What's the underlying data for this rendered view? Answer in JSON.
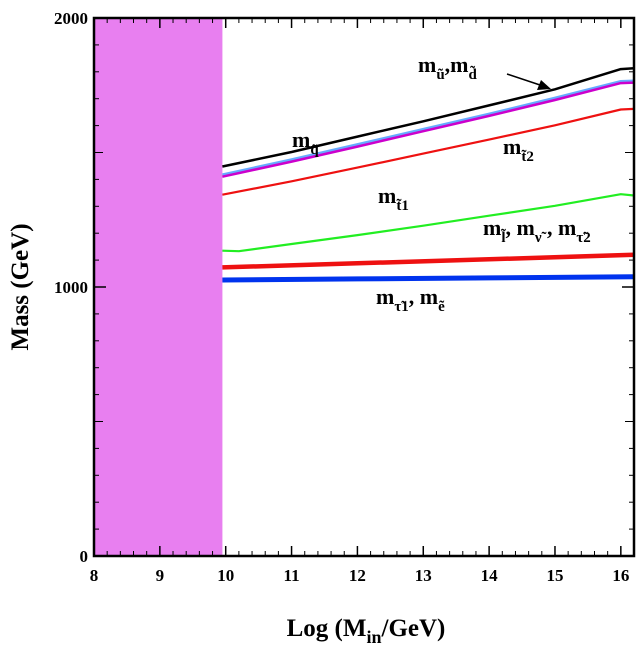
{
  "chart_data": {
    "type": "line",
    "xlabel": "Log (M",
    "xlabel_sub": "in",
    "xlabel_tail": "/GeV)",
    "ylabel": "Mass (GeV)",
    "xlim": [
      8,
      16.2
    ],
    "ylim": [
      0,
      2000
    ],
    "xticks": [
      8,
      9,
      10,
      11,
      12,
      13,
      14,
      15,
      16
    ],
    "yticks": [
      0,
      1000,
      2000
    ],
    "excluded_region": {
      "x_from": 8,
      "x_to": 9.95,
      "color": "#e87ff0"
    },
    "series": [
      {
        "name": "m_q~",
        "color": "#000000",
        "width": 2.5,
        "x": [
          9.95,
          11,
          12,
          13,
          14,
          15,
          16,
          16.2
        ],
        "y": [
          1448,
          1502,
          1559,
          1616,
          1675,
          1735,
          1810,
          1813
        ]
      },
      {
        "name": "m_u~, m_d~ (a)",
        "color": "#66aaff",
        "width": 2.5,
        "x": [
          9.95,
          11,
          12,
          13,
          14,
          15,
          16,
          16.2
        ],
        "y": [
          1418,
          1474,
          1530,
          1587,
          1644,
          1703,
          1765,
          1767
        ]
      },
      {
        "name": "m_u~, m_d~ (b)",
        "color": "#cc00cc",
        "width": 2.5,
        "x": [
          9.95,
          11,
          12,
          13,
          14,
          15,
          16,
          16.2
        ],
        "y": [
          1410,
          1466,
          1522,
          1579,
          1636,
          1695,
          1758,
          1760
        ]
      },
      {
        "name": "m_t~2",
        "color": "#ee1111",
        "width": 2.2,
        "x": [
          9.95,
          11,
          12,
          13,
          14,
          15,
          16,
          16.2
        ],
        "y": [
          1343,
          1393,
          1444,
          1496,
          1548,
          1601,
          1660,
          1662
        ]
      },
      {
        "name": "m_t~1",
        "color": "#22ee22",
        "width": 2.2,
        "x": [
          9.95,
          10.2,
          11,
          12,
          13,
          14,
          15,
          16,
          16.2
        ],
        "y": [
          1135,
          1133,
          1160,
          1193,
          1228,
          1265,
          1302,
          1345,
          1340
        ]
      },
      {
        "name": "m_l~, m_nu~, m_tau~2",
        "color": "#ee1111",
        "width": 4.5,
        "x": [
          9.95,
          12,
          14,
          16.2
        ],
        "y": [
          1073,
          1088,
          1103,
          1120
        ]
      },
      {
        "name": "m_tau~1, m_e~",
        "color": "#0033ee",
        "width": 5,
        "x": [
          9.95,
          12,
          14,
          16.2
        ],
        "y": [
          1026,
          1030,
          1034,
          1038
        ]
      }
    ],
    "labels": [
      {
        "id": "q",
        "main": "m",
        "sub": "q̃",
        "extra": ""
      },
      {
        "id": "ud",
        "main": "m",
        "sub": "ũ",
        "mid": ",m",
        "sub2": "d̃"
      },
      {
        "id": "t2",
        "main": "m",
        "sub": "t̃",
        "sub_num": "2"
      },
      {
        "id": "t1",
        "main": "m",
        "sub": "t̃",
        "sub_num": "1"
      },
      {
        "id": "lnt",
        "main": "m",
        "sub": "l̃",
        "mid": ", m",
        "sub2": "ν̃",
        "mid2": " , m",
        "sub3": "τ̃",
        "sub3_num": "2"
      },
      {
        "id": "te",
        "main": "m",
        "sub": "τ̃",
        "sub_num": "1",
        "mid": ", m",
        "sub2": "ẽ"
      }
    ]
  }
}
